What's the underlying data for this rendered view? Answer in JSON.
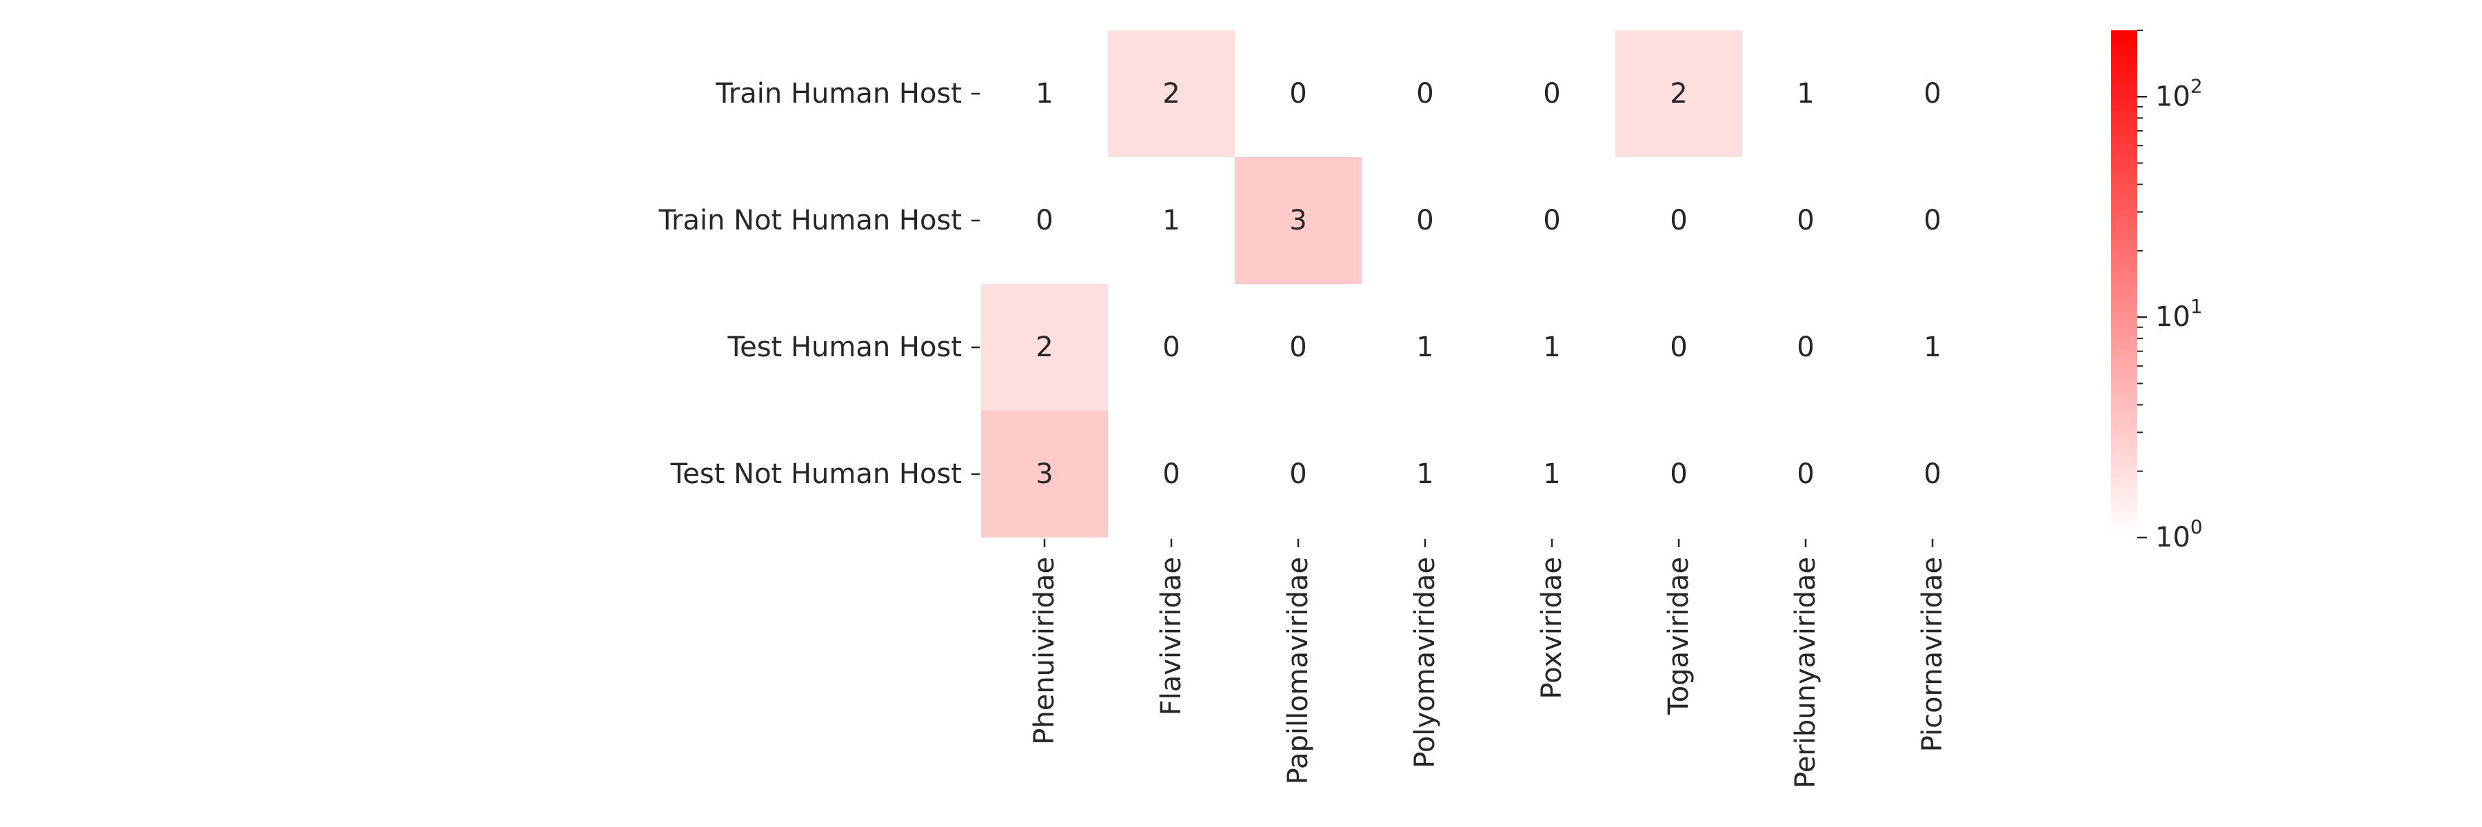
{
  "chart_data": {
    "type": "heatmap",
    "title": "",
    "xlabel": "",
    "ylabel": "",
    "rows": [
      "Train Human Host",
      "Train Not Human Host",
      "Test Human Host",
      "Test Not Human Host"
    ],
    "columns": [
      "Phenuiviridae",
      "Flaviviridae",
      "Papillomaviridae",
      "Polyomaviridae",
      "Poxviridae",
      "Togaviridae",
      "Peribunyaviridae",
      "Picornaviridae"
    ],
    "values": [
      [
        1,
        2,
        0,
        0,
        0,
        2,
        1,
        0
      ],
      [
        0,
        1,
        3,
        0,
        0,
        0,
        0,
        0
      ],
      [
        2,
        0,
        0,
        1,
        1,
        0,
        0,
        1
      ],
      [
        3,
        0,
        0,
        1,
        1,
        0,
        0,
        0
      ]
    ],
    "colorbar": {
      "scale": "log",
      "range": [
        1,
        200
      ],
      "color_low": "#ffffff",
      "color_high": "#ff0000",
      "ticks": [
        {
          "value": 1,
          "base": "10",
          "exponent": "0"
        },
        {
          "value": 10,
          "base": "10",
          "exponent": "1"
        },
        {
          "value": 100,
          "base": "10",
          "exponent": "2"
        }
      ],
      "minor_ticks": [
        2,
        3,
        4,
        5,
        6,
        7,
        8,
        9,
        20,
        30,
        40,
        50,
        60,
        70,
        80,
        90,
        200
      ]
    },
    "grid": false,
    "legend": "colorbar-right"
  }
}
